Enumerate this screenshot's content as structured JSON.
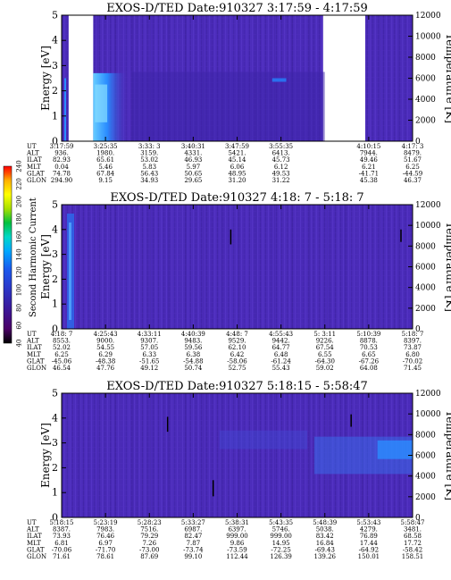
{
  "chart_data": [
    {
      "type": "heatmap",
      "title": "EXOS-D/TED   Date:910327  3:17:59 - 4:17:59",
      "ylabel": "Energy [eV]",
      "ylabel_right": "Temperature [K]",
      "ylim": [
        0,
        5
      ],
      "ylim_right": [
        0,
        12000
      ],
      "yticks": [
        "0",
        "1",
        "2",
        "3",
        "4",
        "5"
      ],
      "yticks_right": [
        "0",
        "2000",
        "4000",
        "6000",
        "8000",
        "10000",
        "12000"
      ],
      "data_gaps": [
        [
          0.02,
          0.09
        ],
        [
          0.745,
          0.865
        ]
      ],
      "table": {
        "rows": [
          "UT",
          "ALT",
          "ILAT",
          "MLT",
          "GLAT",
          "GLON"
        ],
        "columns": [
          [
            "3:17:59",
            "936.",
            "82.93",
            "0.04",
            "74.78",
            "294.90"
          ],
          [
            "3:25:35",
            "1980.",
            "65.61",
            "5.46",
            "67.84",
            "9.15"
          ],
          [
            "3:33: 3",
            "3159.",
            "53.02",
            "5.83",
            "56.43",
            "34.93"
          ],
          [
            "3:40:31",
            "4331.",
            "46.93",
            "5.97",
            "50.65",
            "29.65"
          ],
          [
            "3:47:59",
            "5421.",
            "45.14",
            "6.06",
            "48.95",
            "31.20"
          ],
          [
            "3:55:35",
            "6413.",
            "45.73",
            "6.12",
            "49.53",
            "31.22"
          ],
          [
            "",
            "",
            "",
            "",
            "",
            ""
          ],
          [
            "4:10:15",
            "7944.",
            "49.46",
            "6.21",
            "-41.71",
            "45.38"
          ],
          [
            "4:17: 3",
            "8479.",
            "51.67",
            "6.25",
            "-44.59",
            "46.37"
          ]
        ]
      }
    },
    {
      "type": "heatmap",
      "title": "EXOS-D/TED   Date:910327  4:18: 7 - 5:18: 7",
      "ylabel": "Energy [eV]",
      "ylabel_right": "Temperature [K]",
      "ylim": [
        0,
        5
      ],
      "ylim_right": [
        0,
        12000
      ],
      "yticks": [
        "0",
        "1",
        "2",
        "3",
        "4",
        "5"
      ],
      "yticks_right": [
        "0",
        "2000",
        "4000",
        "6000",
        "8000",
        "10000",
        "12000"
      ],
      "table": {
        "rows": [
          "UT",
          "ALT",
          "ILAT",
          "MLT",
          "GLAT",
          "GLON"
        ],
        "columns": [
          [
            "4:18: 7",
            "8553.",
            "52.02",
            "6.25",
            "-45.06",
            "46.54"
          ],
          [
            "4:25:43",
            "9000.",
            "54.55",
            "6.29",
            "-48.38",
            "47.76"
          ],
          [
            "4:33:11",
            "9307.",
            "57.05",
            "6.33",
            "-51.65",
            "49.12"
          ],
          [
            "4:40:39",
            "9483.",
            "59.56",
            "6.38",
            "-54.88",
            "50.74"
          ],
          [
            "4:48: 7",
            "9529.",
            "62.10",
            "6.42",
            "-58.06",
            "52.75"
          ],
          [
            "4:55:43",
            "9442.",
            "64.77",
            "6.48",
            "-61.24",
            "55.43"
          ],
          [
            "5: 3:11",
            "9226.",
            "67.54",
            "6.55",
            "-64.30",
            "59.02"
          ],
          [
            "5:10:39",
            "8878.",
            "70.53",
            "6.65",
            "-67.26",
            "64.08"
          ],
          [
            "5:18: 7",
            "8397.",
            "73.87",
            "6.80",
            "-70.02",
            "71.45"
          ]
        ]
      }
    },
    {
      "type": "heatmap",
      "title": "EXOS-D/TED   Date:910327  5:18:15 - 5:58:47",
      "ylabel": "Energy [eV]",
      "ylabel_right": "Temperature [K]",
      "ylim": [
        0,
        5
      ],
      "ylim_right": [
        0,
        12000
      ],
      "yticks": [
        "0",
        "1",
        "2",
        "3",
        "4",
        "5"
      ],
      "yticks_right": [
        "0",
        "2000",
        "4000",
        "6000",
        "8000",
        "10000",
        "12000"
      ],
      "table": {
        "rows": [
          "UT",
          "ALT",
          "ILAT",
          "MLT",
          "GLAT",
          "GLON"
        ],
        "columns": [
          [
            "5:18:15",
            "8387.",
            "73.93",
            "6.81",
            "-70.06",
            "71.61"
          ],
          [
            "5:23:19",
            "7983.",
            "76.46",
            "6.97",
            "-71.70",
            "78.61"
          ],
          [
            "5:28:23",
            "7516.",
            "79.29",
            "7.26",
            "-73.00",
            "87.69"
          ],
          [
            "5:33:27",
            "6987.",
            "82.47",
            "7.87",
            "-73.74",
            "99.10"
          ],
          [
            "5:38:31",
            "6397.",
            "999.00",
            "9.86",
            "-73.59",
            "112.44"
          ],
          [
            "5:43:35",
            "5746.",
            "999.00",
            "14.95",
            "-72.25",
            "126.39"
          ],
          [
            "5:48:39",
            "5038.",
            "83.42",
            "16.84",
            "-69.43",
            "139.26"
          ],
          [
            "5:53:43",
            "4279.",
            "76.89",
            "17.44",
            "-64.92",
            "150.01"
          ],
          [
            "5:58:47",
            "3481.",
            "68.58",
            "17.72",
            "-58.42",
            "158.51"
          ]
        ]
      }
    }
  ],
  "colorbar": {
    "label": "Second Harmonic Current",
    "ticks": [
      "40",
      "60",
      "80",
      "100",
      "120",
      "140",
      "160",
      "180",
      "200",
      "220",
      "240"
    ],
    "colors": [
      "#000000",
      "#4a0066",
      "#3a1a9c",
      "#2a3acc",
      "#1a5aee",
      "#00a8ff",
      "#00d8c8",
      "#00c040",
      "#a8e000",
      "#ffff00",
      "#ffb000",
      "#ff5000",
      "#ff0000"
    ]
  },
  "colors": {
    "background": "#4a2bb8",
    "grid": "#3a2090",
    "stripe": "#5a38d0",
    "bright": "#2a8cff",
    "cyan": "#55c8ff"
  }
}
